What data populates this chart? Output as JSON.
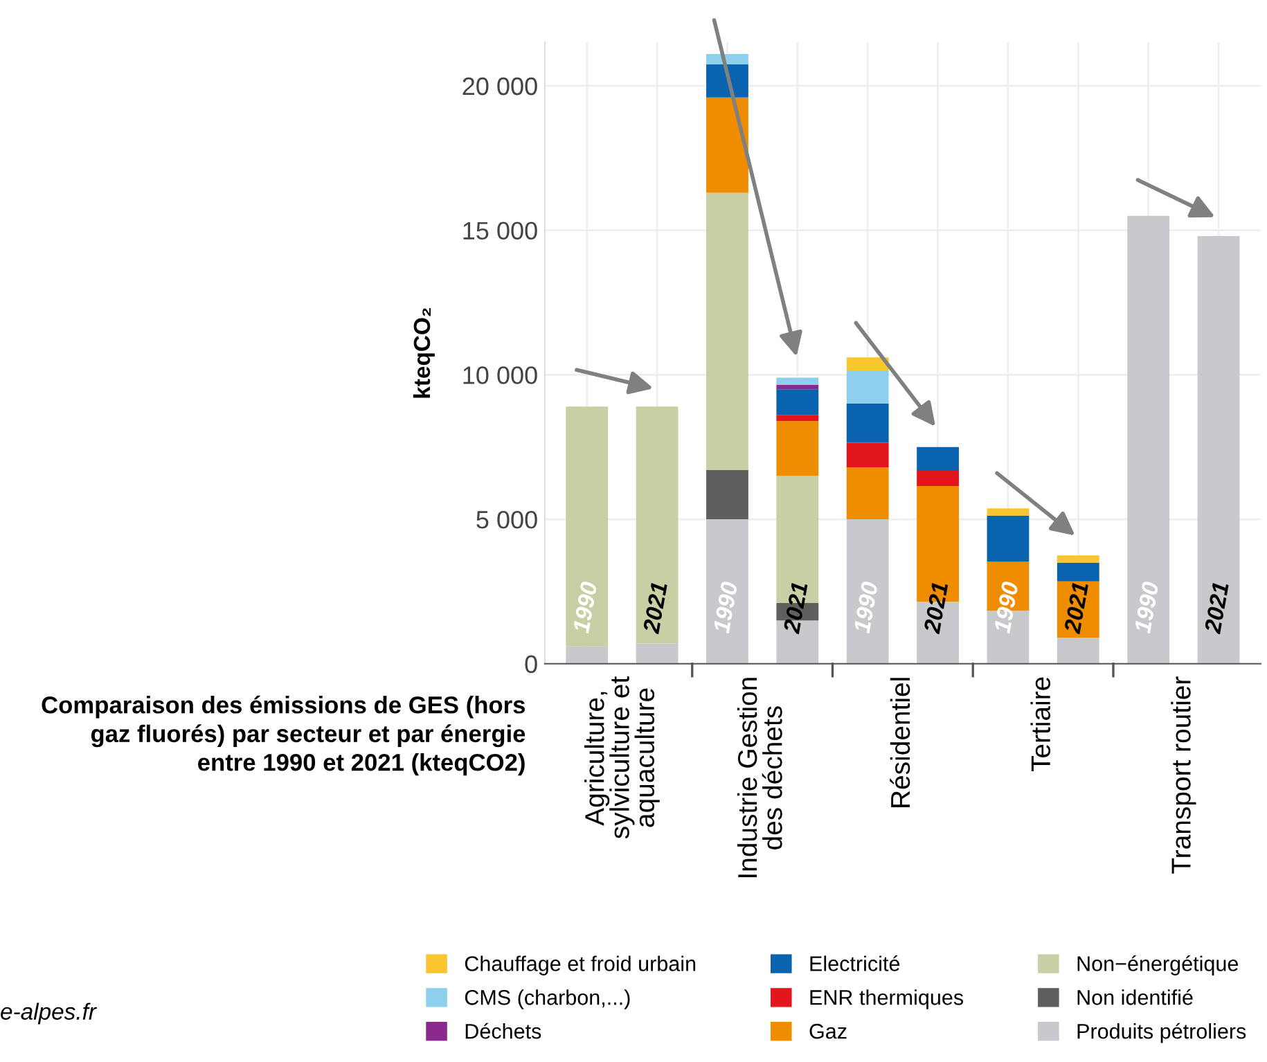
{
  "chart_data": {
    "type": "bar",
    "stacked": true,
    "title": "Comparaison des émissions de GES (hors\ngaz fluorés) par secteur et par énergie\nentre 1990 et 2021 (kteqCO2)",
    "ylabel": "kteqCO₂",
    "categories": [
      "1990",
      "2021",
      "1990",
      "2021",
      "1990",
      "2021",
      "1990",
      "2021",
      "1990",
      "2021"
    ],
    "annotations": [
      "Agriculture,\nsylviculture et\naquaculture",
      "Industrie Gestion\ndes déchets",
      "Résidentiel",
      "Tertiaire",
      "Transport routier",
      "e-alpes.fr"
    ],
    "series": [
      {
        "name": "Produits pétroliers",
        "color": "#c8c9cc",
        "values": [
          600,
          700,
          5000,
          1500,
          5000,
          2150,
          1830,
          900,
          15500,
          14800
        ]
      },
      {
        "name": "Non identifié",
        "color": "#5f5f5f",
        "values": [
          0,
          0,
          1700,
          600,
          0,
          0,
          0,
          0,
          0,
          0
        ]
      },
      {
        "name": "Non−énergétique",
        "color": "#c9cfa4",
        "values": [
          8300,
          8200,
          9600,
          4400,
          0,
          0,
          0,
          0,
          0,
          0
        ]
      },
      {
        "name": "Gaz",
        "color": "#f08c00",
        "values": [
          0,
          0,
          3300,
          1900,
          1800,
          4000,
          1700,
          1950,
          0,
          0
        ]
      },
      {
        "name": "ENR thermiques",
        "color": "#e3161d",
        "values": [
          0,
          0,
          0,
          200,
          850,
          550,
          0,
          0,
          0,
          0
        ]
      },
      {
        "name": "Electricité",
        "color": "#0a63ae",
        "values": [
          0,
          0,
          1150,
          900,
          1350,
          800,
          1600,
          650,
          0,
          0
        ]
      },
      {
        "name": "Déchets",
        "color": "#8b2a8e",
        "values": [
          0,
          0,
          0,
          150,
          0,
          0,
          0,
          0,
          0,
          0
        ]
      },
      {
        "name": "CMS (charbon,...)",
        "color": "#8ecfee",
        "values": [
          0,
          0,
          350,
          250,
          1150,
          0,
          0,
          0,
          0,
          0
        ]
      },
      {
        "name": "Chauffage et froid urbain",
        "color": "#fbc531",
        "values": [
          0,
          0,
          0,
          0,
          450,
          0,
          250,
          250,
          0,
          0
        ]
      }
    ],
    "ylim": [
      0,
      21500
    ],
    "yticks": [
      {
        "value": 0,
        "label": "0"
      },
      {
        "value": 5000,
        "label": "5 000"
      },
      {
        "value": 10000,
        "label": "10 000"
      },
      {
        "value": 15000,
        "label": "15 000"
      },
      {
        "value": 20000,
        "label": "20 000"
      }
    ],
    "grid": true,
    "legend": "bottom"
  }
}
